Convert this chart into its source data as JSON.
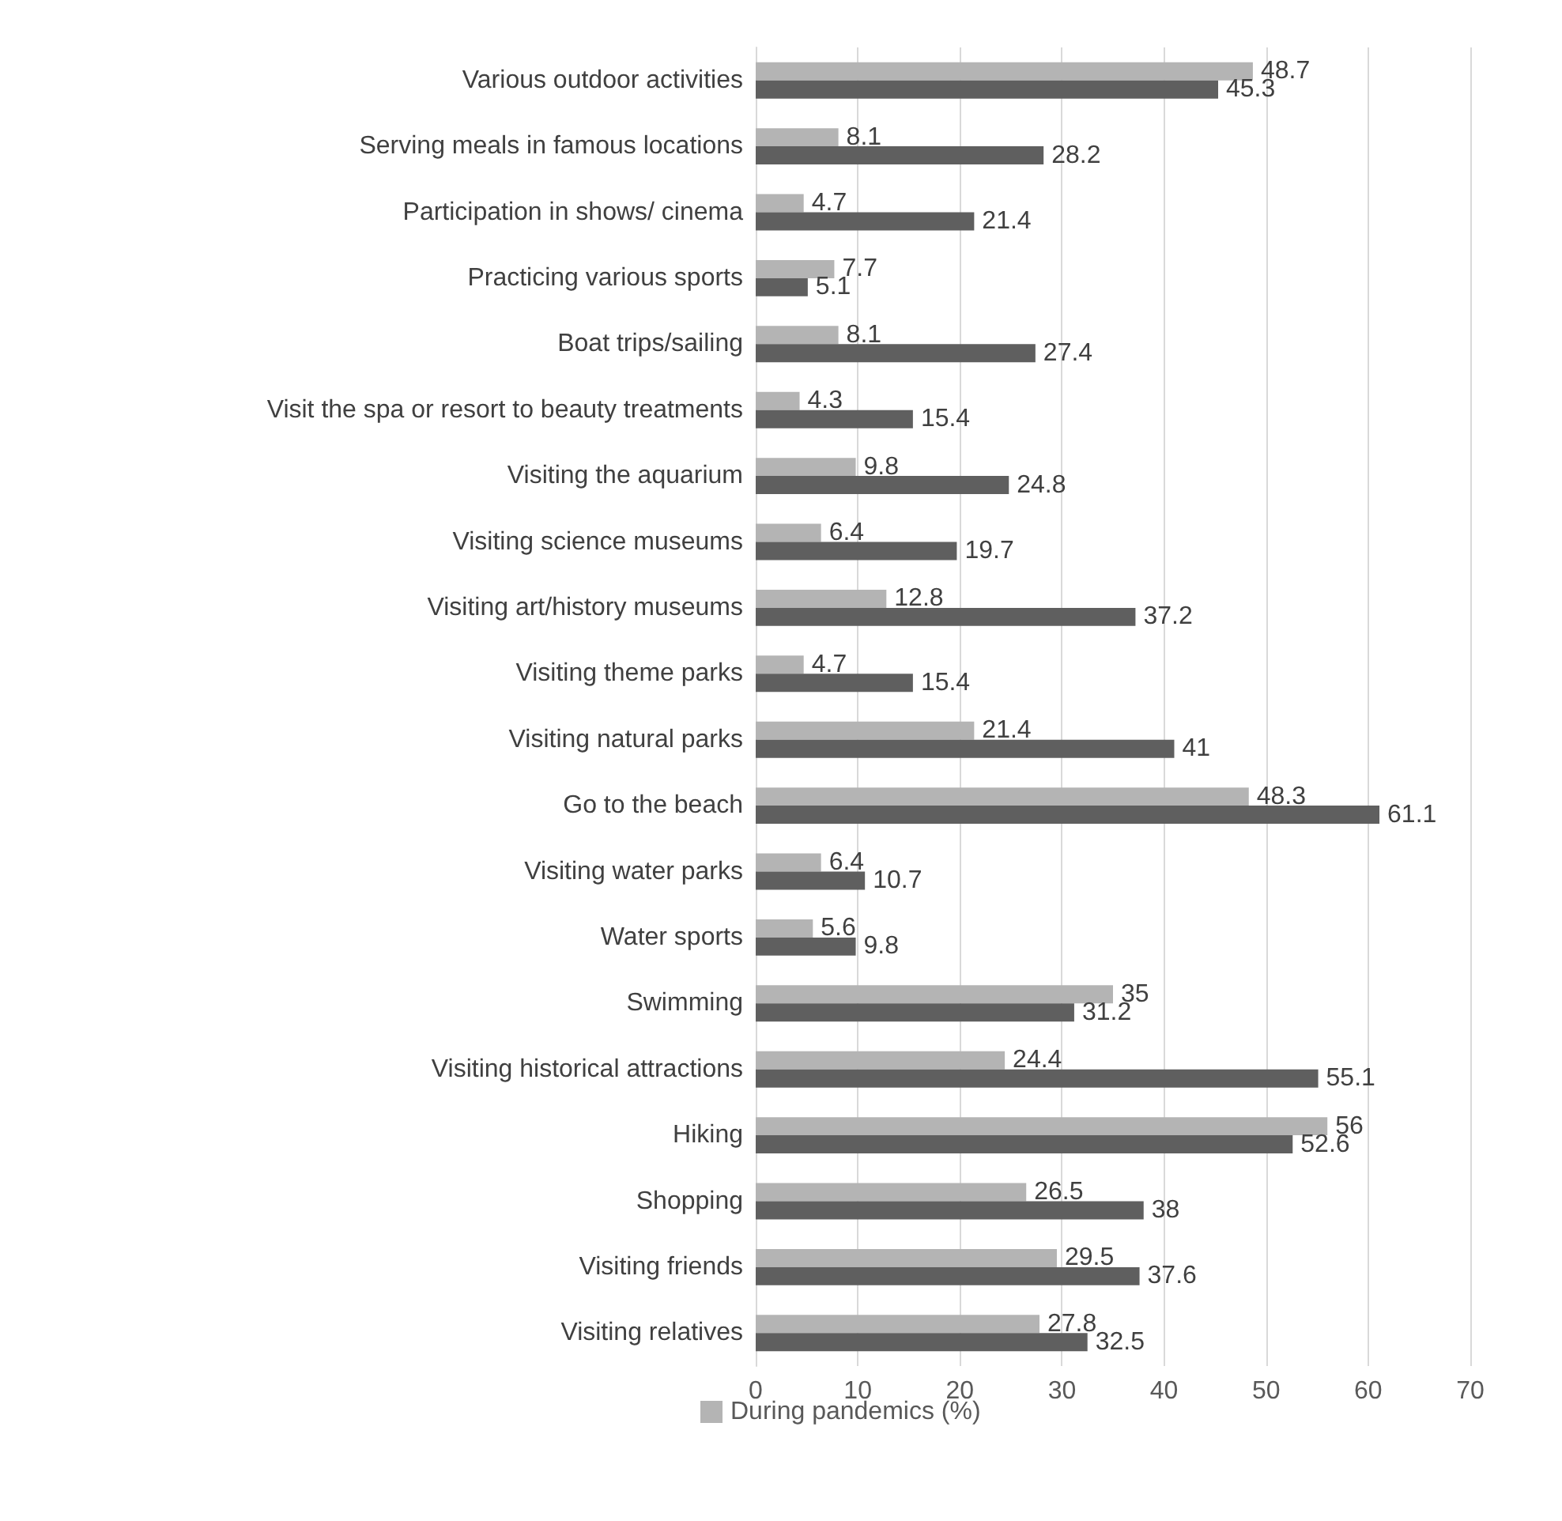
{
  "chart_data": {
    "type": "bar",
    "orientation": "horizontal",
    "categories": [
      "Various outdoor activities",
      "Serving meals in famous locations",
      "Participation in shows/ cinema",
      "Practicing various sports",
      "Boat trips/sailing",
      "Visit the spa or resort to beauty treatments",
      "Visiting the aquarium",
      "Visiting science museums",
      "Visiting art/history museums",
      "Visiting theme parks",
      "Visiting natural parks",
      "Go to the beach",
      "Visiting water parks",
      "Water sports",
      "Swimming",
      "Visiting historical attractions",
      "Hiking",
      "Shopping",
      "Visiting friends",
      "Visiting relatives"
    ],
    "series": [
      {
        "name": "During pandemics (%)",
        "color": "#b4b4b4",
        "values": [
          48.7,
          8.1,
          4.7,
          7.7,
          8.1,
          4.3,
          9.8,
          6.4,
          12.8,
          4.7,
          21.4,
          48.3,
          6.4,
          5.6,
          35,
          24.4,
          56,
          26.5,
          29.5,
          27.8
        ]
      },
      {
        "color": "#5f5f5f",
        "values": [
          45.3,
          28.2,
          21.4,
          5.1,
          27.4,
          15.4,
          24.8,
          19.7,
          37.2,
          15.4,
          41,
          61.1,
          10.7,
          9.8,
          31.2,
          55.1,
          52.6,
          38,
          37.6,
          32.5
        ]
      }
    ],
    "xlim": [
      0,
      70
    ],
    "xticks": [
      0,
      10,
      20,
      30,
      40,
      50,
      60,
      70
    ],
    "grid": "x",
    "legend": "bottom",
    "data_labels": true
  }
}
